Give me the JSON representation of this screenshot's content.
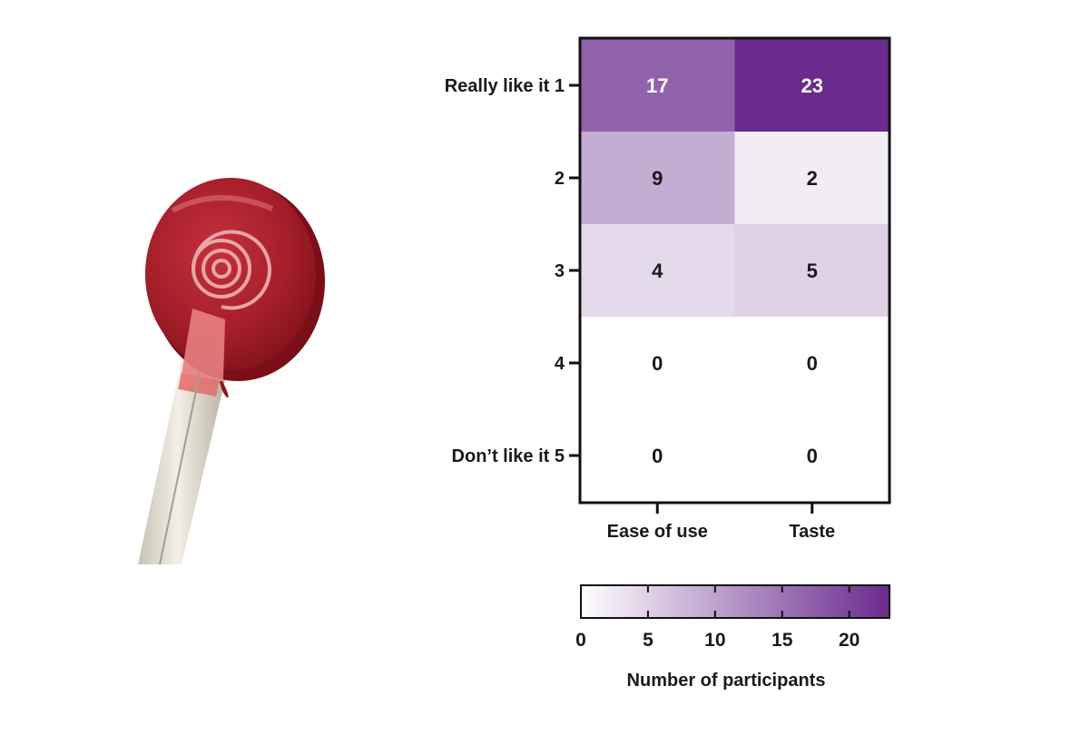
{
  "image_subject": "lollipop-photo",
  "chart_data": {
    "type": "heatmap",
    "columns": [
      "Ease of use",
      "Taste"
    ],
    "rows": [
      "Really like it 1",
      "2",
      "3",
      "4",
      "Don’t like it 5"
    ],
    "values": [
      [
        17,
        23
      ],
      [
        9,
        2
      ],
      [
        4,
        5
      ],
      [
        0,
        0
      ],
      [
        0,
        0
      ]
    ],
    "colorbar": {
      "label": "Number of participants",
      "min": 0,
      "max": 23,
      "ticks": [
        0,
        5,
        10,
        15,
        20
      ],
      "low_color": "#ffffff",
      "high_color": "#6a2a8e"
    },
    "text_color_dark": "#1a1a1a",
    "text_color_light": "#ffffff"
  }
}
